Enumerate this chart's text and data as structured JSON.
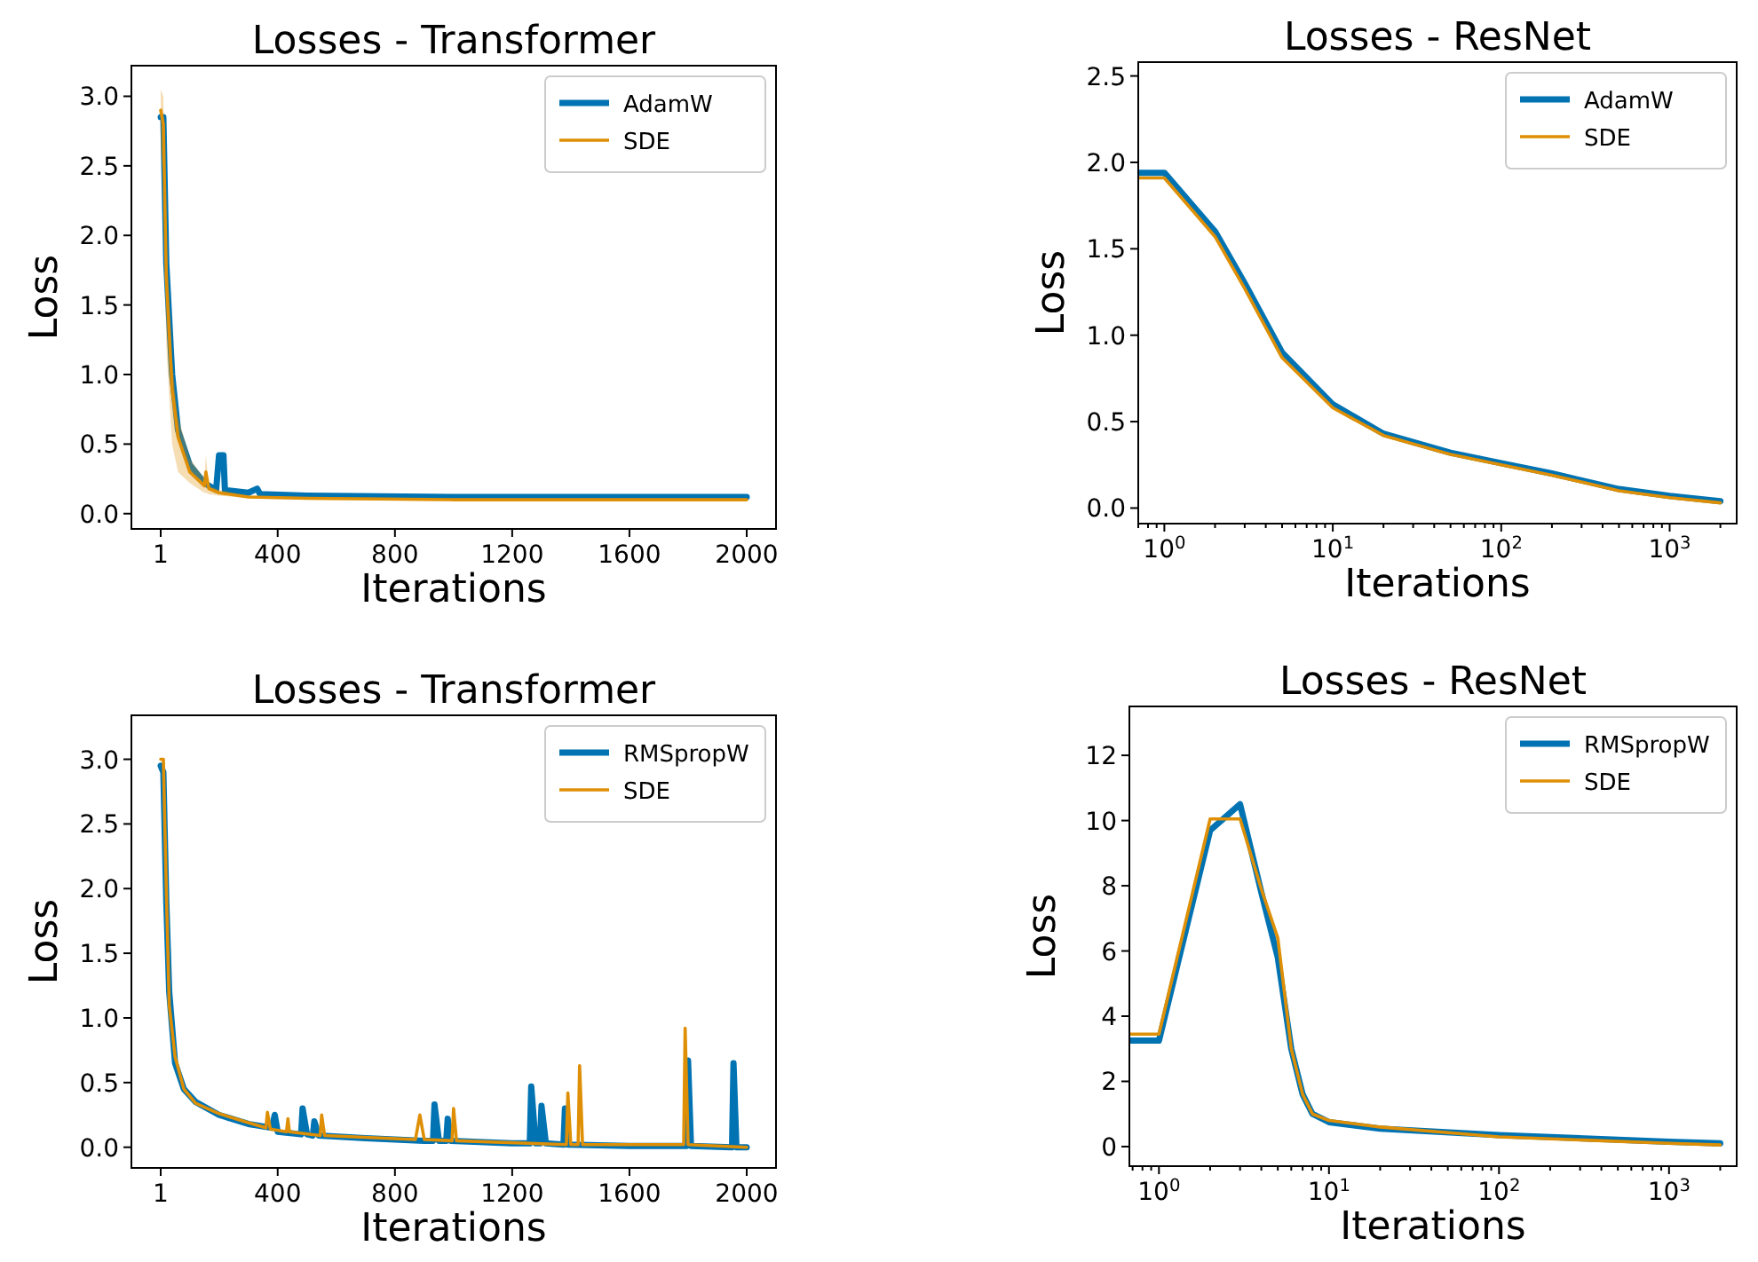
{
  "chart_data": [
    {
      "type": "line",
      "title": "Losses - Transformer",
      "xlabel": "Iterations",
      "ylabel": "Loss",
      "xlim": [
        -99,
        2100
      ],
      "xticks": [
        1,
        400,
        800,
        1200,
        1600,
        2000
      ],
      "ylim": [
        -0.11,
        3.22
      ],
      "yticks": [
        {
          "value": 0,
          "label": "0.0"
        },
        {
          "value": 0.5,
          "label": "0.5"
        },
        {
          "value": 1,
          "label": "1.0"
        },
        {
          "value": 1.5,
          "label": "1.5"
        },
        {
          "value": 2,
          "label": "2.0"
        },
        {
          "value": 2.5,
          "label": "2.5"
        },
        {
          "value": 3,
          "label": "3.0"
        }
      ],
      "legend": "top right",
      "grid": false,
      "series": [
        {
          "name": "AdamW",
          "color": "#0173b2",
          "x": [
            1,
            10,
            20,
            40,
            60,
            100,
            150,
            190,
            200,
            215,
            220,
            300,
            330,
            340,
            500,
            1000,
            1500,
            2000
          ],
          "values": [
            2.85,
            2.85,
            1.8,
            1.0,
            0.6,
            0.35,
            0.22,
            0.17,
            0.42,
            0.42,
            0.17,
            0.15,
            0.18,
            0.14,
            0.13,
            0.12,
            0.12,
            0.12
          ]
        },
        {
          "name": "SDE",
          "color": "#de8f05",
          "x": [
            1,
            10,
            20,
            40,
            60,
            100,
            150,
            155,
            165,
            200,
            300,
            500,
            1000,
            2000
          ],
          "values": [
            2.9,
            2.8,
            1.7,
            0.9,
            0.55,
            0.3,
            0.2,
            0.3,
            0.18,
            0.15,
            0.12,
            0.11,
            0.1,
            0.1
          ],
          "lower": [
            2.6,
            2.4,
            1.2,
            0.5,
            0.3,
            0.22,
            0.15,
            0.15,
            0.14,
            0.13,
            0.11,
            0.1,
            0.09,
            0.09
          ],
          "upper": [
            3.05,
            3.0,
            2.0,
            1.1,
            0.7,
            0.4,
            0.25,
            0.42,
            0.2,
            0.17,
            0.13,
            0.12,
            0.11,
            0.11
          ]
        }
      ]
    },
    {
      "type": "line",
      "title": "Losses - ResNet",
      "xlabel": "Iterations",
      "ylabel": "Loss",
      "log": "x",
      "xlim": [
        0.7,
        2500
      ],
      "xticks": [
        {
          "value": 0.7,
          "label": null
        },
        {
          "value": 0.8,
          "label": null
        },
        {
          "value": 0.9,
          "label": null
        },
        {
          "value": 1,
          "label": "10$^{0}$"
        },
        {
          "value": 2,
          "label": null
        },
        {
          "value": 3,
          "label": null
        },
        {
          "value": 4,
          "label": null
        },
        {
          "value": 5,
          "label": null
        },
        {
          "value": 6,
          "label": null
        },
        {
          "value": 7,
          "label": null
        },
        {
          "value": 8,
          "label": null
        },
        {
          "value": 9,
          "label": null
        },
        {
          "value": 10,
          "label": "10$^{1}$"
        },
        {
          "value": 20,
          "label": null
        },
        {
          "value": 30,
          "label": null
        },
        {
          "value": 40,
          "label": null
        },
        {
          "value": 50,
          "label": null
        },
        {
          "value": 60,
          "label": null
        },
        {
          "value": 70,
          "label": null
        },
        {
          "value": 80,
          "label": null
        },
        {
          "value": 90,
          "label": null
        },
        {
          "value": 100,
          "label": "10$^{2}$"
        },
        {
          "value": 200,
          "label": null
        },
        {
          "value": 300,
          "label": null
        },
        {
          "value": 400,
          "label": null
        },
        {
          "value": 500,
          "label": null
        },
        {
          "value": 600,
          "label": null
        },
        {
          "value": 700,
          "label": null
        },
        {
          "value": 800,
          "label": null
        },
        {
          "value": 900,
          "label": null
        },
        {
          "value": 1000,
          "label": "10$^{3}$"
        },
        {
          "value": 2000,
          "label": null
        }
      ],
      "ylim": [
        -0.09,
        2.58
      ],
      "yticks": [
        {
          "value": 0,
          "label": "0.0"
        },
        {
          "value": 0.5,
          "label": "0.5"
        },
        {
          "value": 1,
          "label": "1.0"
        },
        {
          "value": 1.5,
          "label": "1.5"
        },
        {
          "value": 2,
          "label": "2.0"
        },
        {
          "value": 2.5,
          "label": "2.5"
        }
      ],
      "legend": "top right",
      "grid": false,
      "series": [
        {
          "name": "AdamW",
          "color": "#0173b2",
          "x": [
            0.7,
            1,
            2,
            3,
            5,
            10,
            20,
            50,
            100,
            200,
            500,
            1000,
            2000
          ],
          "values": [
            1.94,
            1.94,
            1.6,
            1.3,
            0.9,
            0.6,
            0.43,
            0.32,
            0.26,
            0.2,
            0.11,
            0.07,
            0.04
          ]
        },
        {
          "name": "SDE",
          "color": "#de8f05",
          "x": [
            0.7,
            1,
            2,
            3,
            5,
            10,
            20,
            50,
            100,
            200,
            500,
            1000,
            2000
          ],
          "values": [
            1.91,
            1.91,
            1.57,
            1.27,
            0.87,
            0.58,
            0.42,
            0.31,
            0.25,
            0.19,
            0.1,
            0.06,
            0.03
          ]
        }
      ]
    },
    {
      "type": "line",
      "title": "Losses - Transformer",
      "xlabel": "Iterations",
      "ylabel": "Loss",
      "xlim": [
        -99,
        2100
      ],
      "xticks": [
        1,
        400,
        800,
        1200,
        1600,
        2000
      ],
      "ylim": [
        -0.16,
        3.34
      ],
      "yticks": [
        {
          "value": 0,
          "label": "0.0"
        },
        {
          "value": 0.5,
          "label": "0.5"
        },
        {
          "value": 1,
          "label": "1.0"
        },
        {
          "value": 1.5,
          "label": "1.5"
        },
        {
          "value": 2,
          "label": "2.0"
        },
        {
          "value": 2.5,
          "label": "2.5"
        },
        {
          "value": 3,
          "label": "3.0"
        }
      ],
      "legend": "top right",
      "grid": false,
      "series": [
        {
          "name": "RMSpropW",
          "color": "#0173b2",
          "x": [
            1,
            10,
            20,
            30,
            50,
            80,
            120,
            200,
            300,
            380,
            390,
            400,
            480,
            485,
            500,
            520,
            525,
            540,
            700,
            900,
            930,
            935,
            950,
            975,
            980,
            990,
            1200,
            1260,
            1265,
            1280,
            1295,
            1300,
            1315,
            1375,
            1380,
            1390,
            1600,
            1795,
            1800,
            1810,
            1950,
            1955,
            1965,
            2000
          ],
          "values": [
            2.95,
            2.9,
            1.9,
            1.2,
            0.65,
            0.45,
            0.35,
            0.25,
            0.18,
            0.15,
            0.25,
            0.12,
            0.1,
            0.3,
            0.1,
            0.09,
            0.2,
            0.09,
            0.07,
            0.05,
            0.05,
            0.33,
            0.05,
            0.05,
            0.22,
            0.05,
            0.03,
            0.03,
            0.47,
            0.03,
            0.03,
            0.32,
            0.03,
            0.02,
            0.3,
            0.02,
            0.01,
            0.01,
            0.67,
            0.01,
            0.0,
            0.65,
            0.0,
            0.0
          ]
        },
        {
          "name": "SDE",
          "color": "#de8f05",
          "x": [
            1,
            10,
            20,
            30,
            50,
            80,
            120,
            200,
            300,
            360,
            365,
            375,
            430,
            435,
            440,
            545,
            550,
            560,
            870,
            885,
            900,
            995,
            1000,
            1010,
            1385,
            1390,
            1400,
            1425,
            1430,
            1440,
            1785,
            1790,
            1800,
            2000
          ],
          "values": [
            3.0,
            3.0,
            2.0,
            1.1,
            0.7,
            0.45,
            0.34,
            0.26,
            0.19,
            0.15,
            0.27,
            0.14,
            0.12,
            0.22,
            0.12,
            0.09,
            0.25,
            0.09,
            0.06,
            0.25,
            0.06,
            0.05,
            0.3,
            0.05,
            0.02,
            0.42,
            0.02,
            0.02,
            0.63,
            0.02,
            0.02,
            0.92,
            0.02,
            0.0
          ]
        }
      ]
    },
    {
      "type": "line",
      "title": "Losses - ResNet",
      "xlabel": "Iterations",
      "ylabel": "Loss",
      "log": "x",
      "xlim": [
        0.67,
        2500
      ],
      "xticks": [
        {
          "value": 0.7,
          "label": null
        },
        {
          "value": 0.8,
          "label": null
        },
        {
          "value": 0.9,
          "label": null
        },
        {
          "value": 1,
          "label": "10$^{0}$"
        },
        {
          "value": 2,
          "label": null
        },
        {
          "value": 3,
          "label": null
        },
        {
          "value": 4,
          "label": null
        },
        {
          "value": 5,
          "label": null
        },
        {
          "value": 6,
          "label": null
        },
        {
          "value": 7,
          "label": null
        },
        {
          "value": 8,
          "label": null
        },
        {
          "value": 9,
          "label": null
        },
        {
          "value": 10,
          "label": "10$^{1}$"
        },
        {
          "value": 20,
          "label": null
        },
        {
          "value": 30,
          "label": null
        },
        {
          "value": 40,
          "label": null
        },
        {
          "value": 50,
          "label": null
        },
        {
          "value": 60,
          "label": null
        },
        {
          "value": 70,
          "label": null
        },
        {
          "value": 80,
          "label": null
        },
        {
          "value": 90,
          "label": null
        },
        {
          "value": 100,
          "label": "10$^{2}$"
        },
        {
          "value": 200,
          "label": null
        },
        {
          "value": 300,
          "label": null
        },
        {
          "value": 400,
          "label": null
        },
        {
          "value": 500,
          "label": null
        },
        {
          "value": 600,
          "label": null
        },
        {
          "value": 700,
          "label": null
        },
        {
          "value": 800,
          "label": null
        },
        {
          "value": 900,
          "label": null
        },
        {
          "value": 1000,
          "label": "10$^{3}$"
        },
        {
          "value": 2000,
          "label": null
        }
      ],
      "ylim": [
        -0.6,
        13.5
      ],
      "yticks": [
        0,
        2,
        4,
        6,
        8,
        10,
        12
      ],
      "legend": "top right",
      "grid": false,
      "series": [
        {
          "name": "RMSpropW",
          "color": "#0173b2",
          "x": [
            0.67,
            1,
            2,
            3,
            4,
            5,
            6,
            7,
            8,
            10,
            20,
            100,
            1000,
            2000
          ],
          "values": [
            3.25,
            3.25,
            9.7,
            10.5,
            7.8,
            5.8,
            3.0,
            1.6,
            1.0,
            0.75,
            0.55,
            0.35,
            0.15,
            0.1
          ]
        },
        {
          "name": "SDE",
          "color": "#de8f05",
          "x": [
            0.67,
            1,
            2,
            3,
            4,
            5,
            6,
            7,
            8,
            10,
            20,
            100,
            1000,
            2000
          ],
          "values": [
            3.45,
            3.45,
            10.05,
            10.05,
            7.9,
            6.4,
            3.0,
            1.6,
            1.0,
            0.8,
            0.6,
            0.3,
            0.1,
            0.05
          ]
        }
      ]
    }
  ]
}
